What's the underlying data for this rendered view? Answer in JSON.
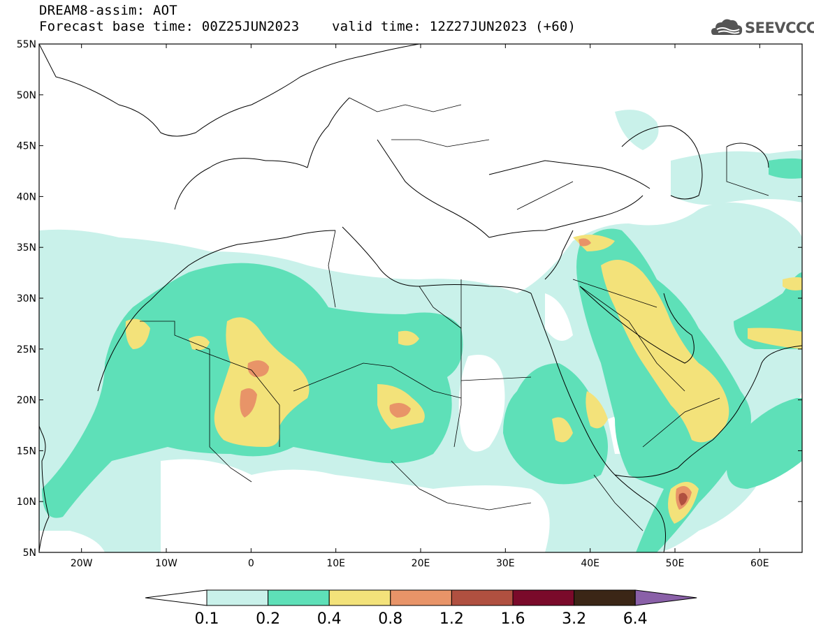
{
  "header": {
    "title": "DREAM8-assim: AOT",
    "base_time": "Forecast base time: 00Z25JUN2023",
    "valid_time": "valid time: 12Z27JUN2023 (+60)"
  },
  "logo": {
    "text": "SEEVCCC"
  },
  "map": {
    "lon_range": [
      -25,
      65
    ],
    "lat_range": [
      5,
      55
    ],
    "lat_ticks": [
      "55N",
      "50N",
      "45N",
      "40N",
      "35N",
      "30N",
      "25N",
      "20N",
      "15N",
      "10N",
      "5N"
    ],
    "lon_ticks": [
      "20W",
      "10W",
      "0",
      "10E",
      "20E",
      "30E",
      "40E",
      "50E",
      "60E"
    ]
  },
  "colorbar": {
    "labels": [
      "0.1",
      "0.2",
      "0.4",
      "0.8",
      "1.2",
      "1.6",
      "3.2",
      "6.4"
    ],
    "colors": [
      "#ffffff",
      "#c9f1ea",
      "#5ee0b8",
      "#f3e27a",
      "#e89468",
      "#b05040",
      "#7a0a2a",
      "#3b2616",
      "#8a60a8"
    ]
  }
}
